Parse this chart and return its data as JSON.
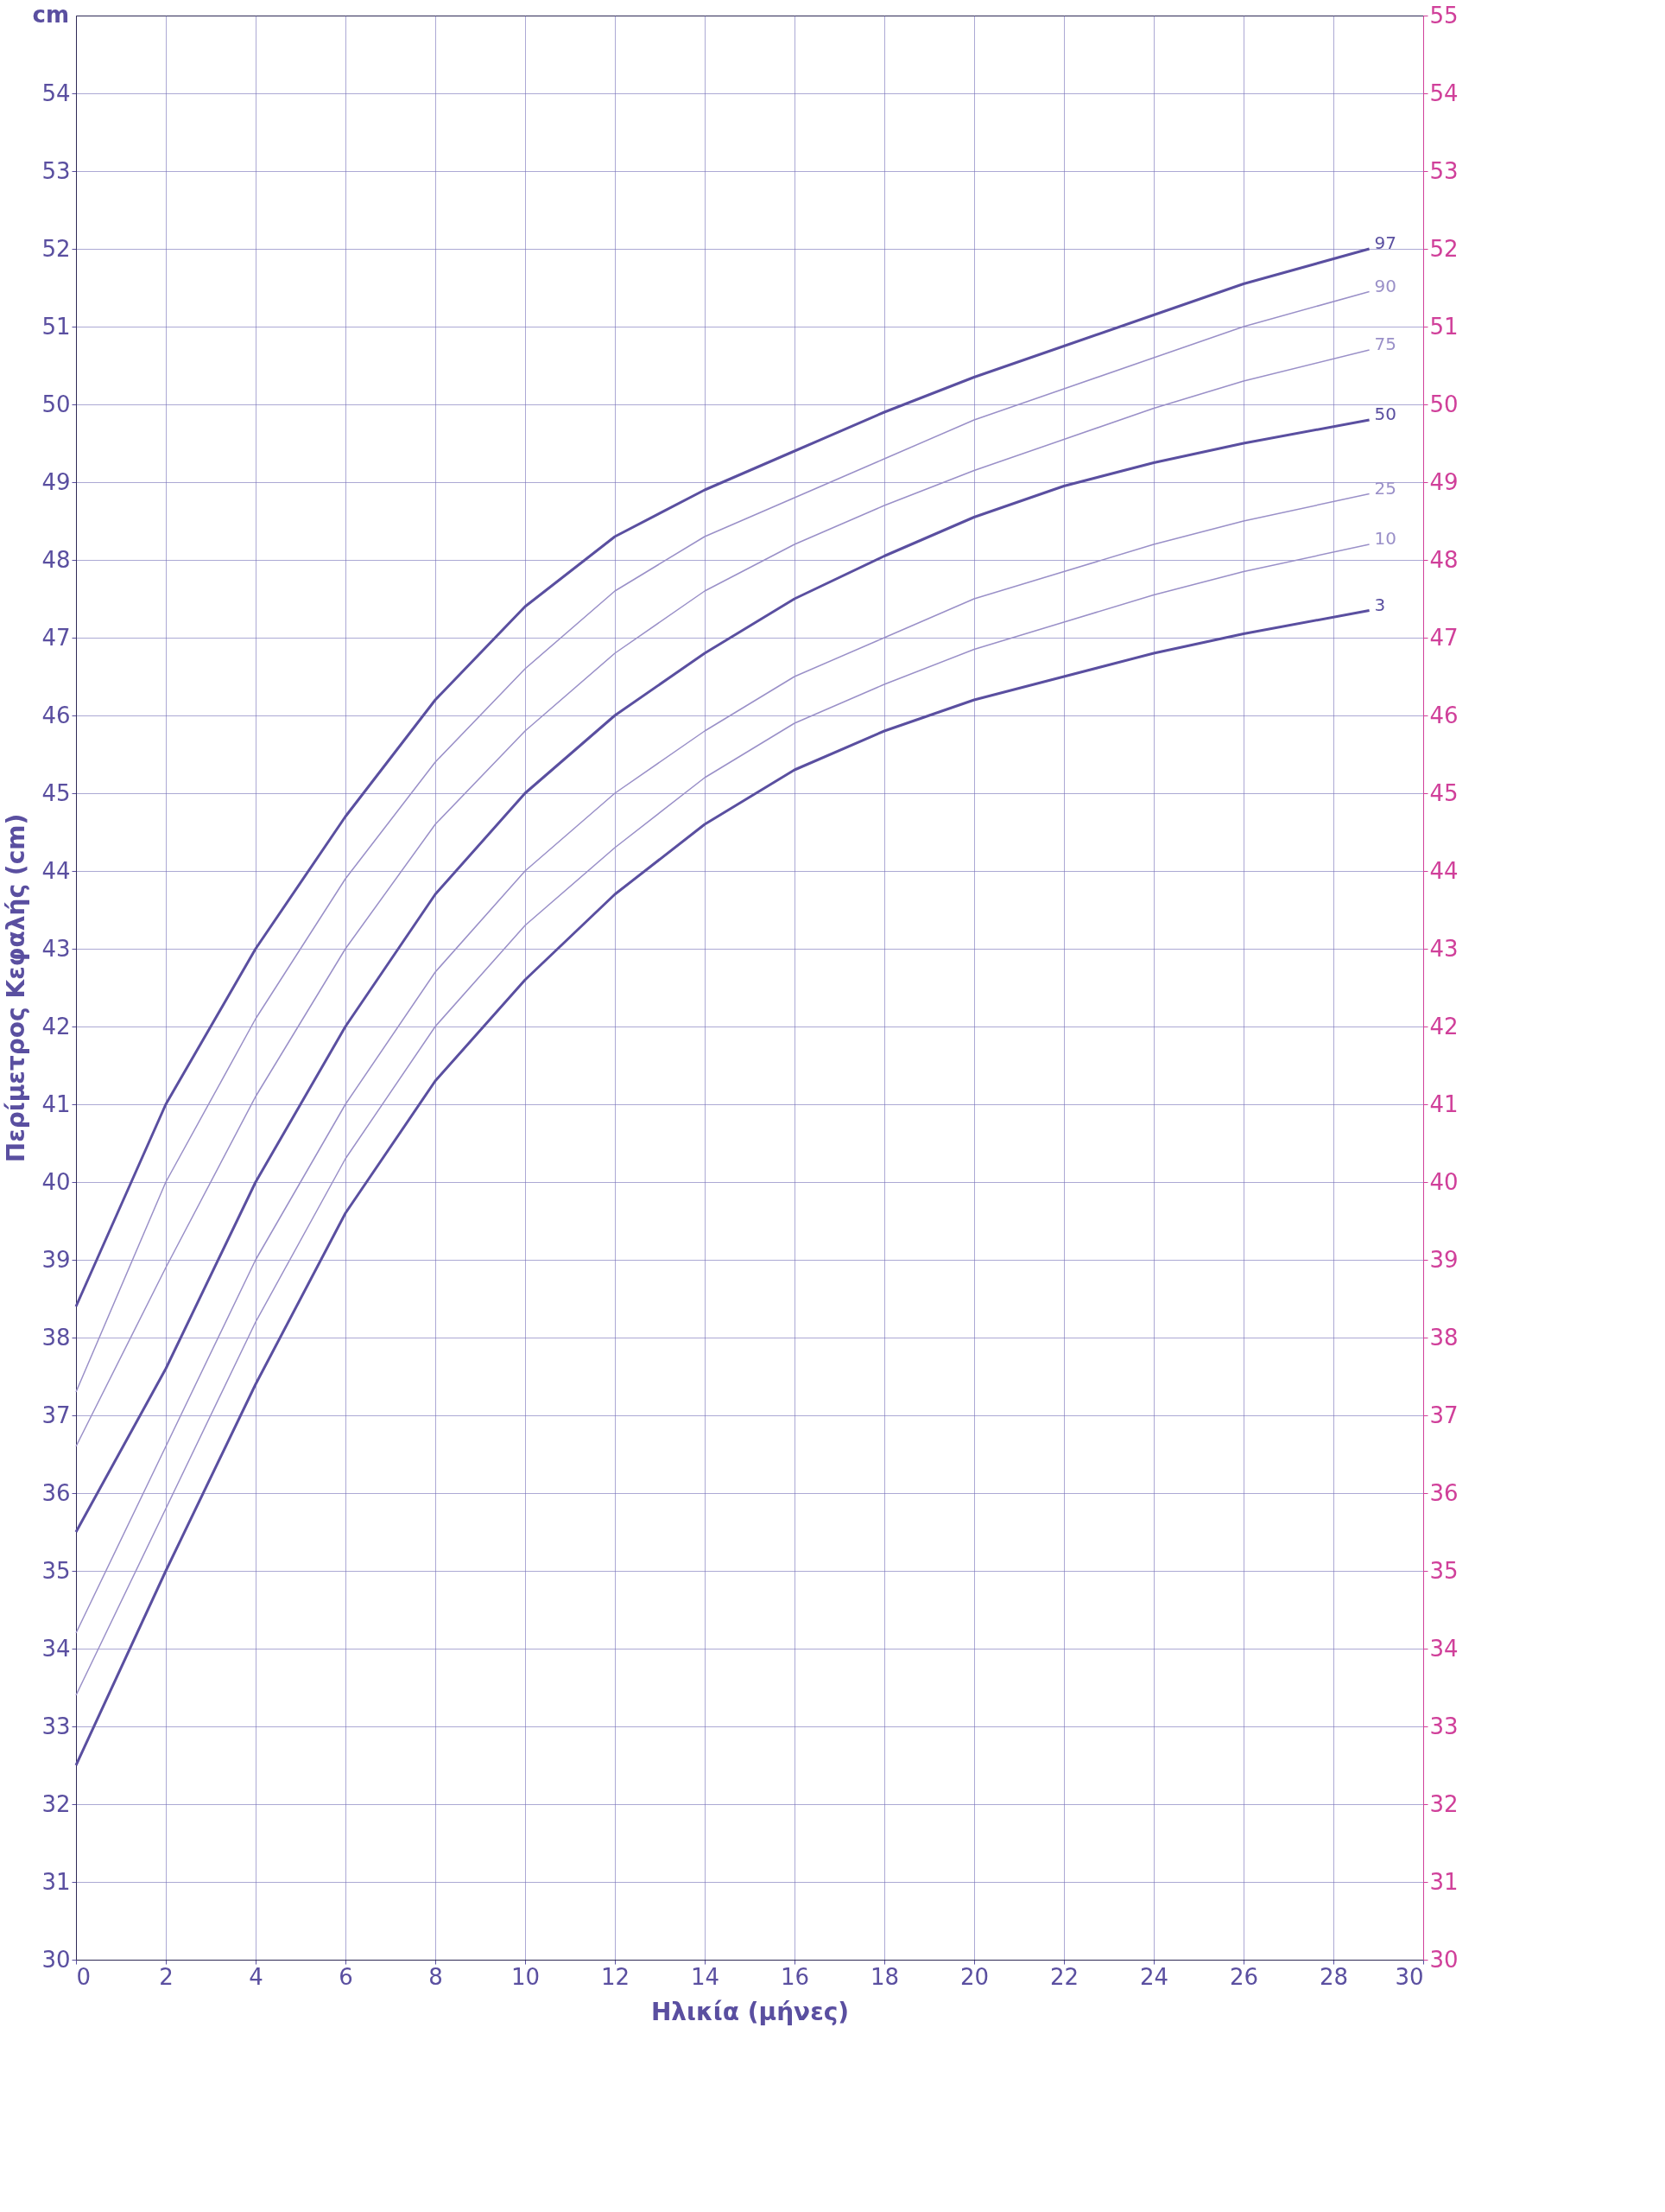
{
  "chart_data": {
    "type": "line",
    "xlabel": "Ηλικία (μήνες)",
    "ylabel": "Περίμετρος Κεφαλής (cm)",
    "annotations": [
      "cm"
    ],
    "x": [
      0,
      2,
      4,
      6,
      8,
      10,
      12,
      14,
      16,
      18,
      20,
      22,
      24,
      26,
      28.8
    ],
    "series": [
      {
        "name": "97",
        "color": "#5a4fa0",
        "values": [
          38.4,
          41.0,
          43.0,
          44.7,
          46.2,
          47.4,
          48.3,
          48.9,
          49.4,
          49.9,
          50.35,
          50.75,
          51.15,
          51.55,
          52.0
        ]
      },
      {
        "name": "90",
        "color": "#9a90c8",
        "values": [
          37.3,
          40.0,
          42.1,
          43.9,
          45.4,
          46.6,
          47.6,
          48.3,
          48.8,
          49.3,
          49.8,
          50.2,
          50.6,
          51.0,
          51.45
        ]
      },
      {
        "name": "75",
        "color": "#9a90c8",
        "values": [
          36.6,
          38.9,
          41.1,
          43.0,
          44.6,
          45.8,
          46.8,
          47.6,
          48.2,
          48.7,
          49.15,
          49.55,
          49.95,
          50.3,
          50.7
        ]
      },
      {
        "name": "50",
        "color": "#5a4fa0",
        "values": [
          35.5,
          37.6,
          40.0,
          42.0,
          43.7,
          45.0,
          46.0,
          46.8,
          47.5,
          48.05,
          48.55,
          48.95,
          49.25,
          49.5,
          49.8
        ]
      },
      {
        "name": "25",
        "color": "#9a90c8",
        "values": [
          34.2,
          36.6,
          39.0,
          41.0,
          42.7,
          44.0,
          45.0,
          45.8,
          46.5,
          47.0,
          47.5,
          47.85,
          48.2,
          48.5,
          48.85
        ]
      },
      {
        "name": "10",
        "color": "#9a90c8",
        "values": [
          33.4,
          35.8,
          38.2,
          40.3,
          42.0,
          43.3,
          44.3,
          45.2,
          45.9,
          46.4,
          46.85,
          47.2,
          47.55,
          47.85,
          48.2
        ]
      },
      {
        "name": "3",
        "color": "#5a4fa0",
        "values": [
          32.5,
          35.0,
          37.4,
          39.6,
          41.3,
          42.6,
          43.7,
          44.6,
          45.3,
          45.8,
          46.2,
          46.5,
          46.8,
          47.05,
          47.35
        ]
      }
    ],
    "xlim": [
      0,
      30
    ],
    "xticks": [
      0,
      2,
      4,
      6,
      8,
      10,
      12,
      14,
      16,
      18,
      20,
      22,
      24,
      26,
      28,
      30
    ],
    "ylim": [
      30,
      55
    ],
    "yticks": [
      30,
      31,
      32,
      33,
      34,
      35,
      36,
      37,
      38,
      39,
      40,
      41,
      42,
      43,
      44,
      45,
      46,
      47,
      48,
      49,
      50,
      51,
      52,
      53,
      54
    ],
    "y2lim": [
      30,
      55
    ],
    "y2ticks": [
      30,
      31,
      32,
      33,
      34,
      35,
      36,
      37,
      38,
      39,
      40,
      41,
      42,
      43,
      44,
      45,
      46,
      47,
      48,
      49,
      50,
      51,
      52,
      53,
      54,
      55
    ],
    "grid": true,
    "marker": "none",
    "line_style": "solid"
  }
}
